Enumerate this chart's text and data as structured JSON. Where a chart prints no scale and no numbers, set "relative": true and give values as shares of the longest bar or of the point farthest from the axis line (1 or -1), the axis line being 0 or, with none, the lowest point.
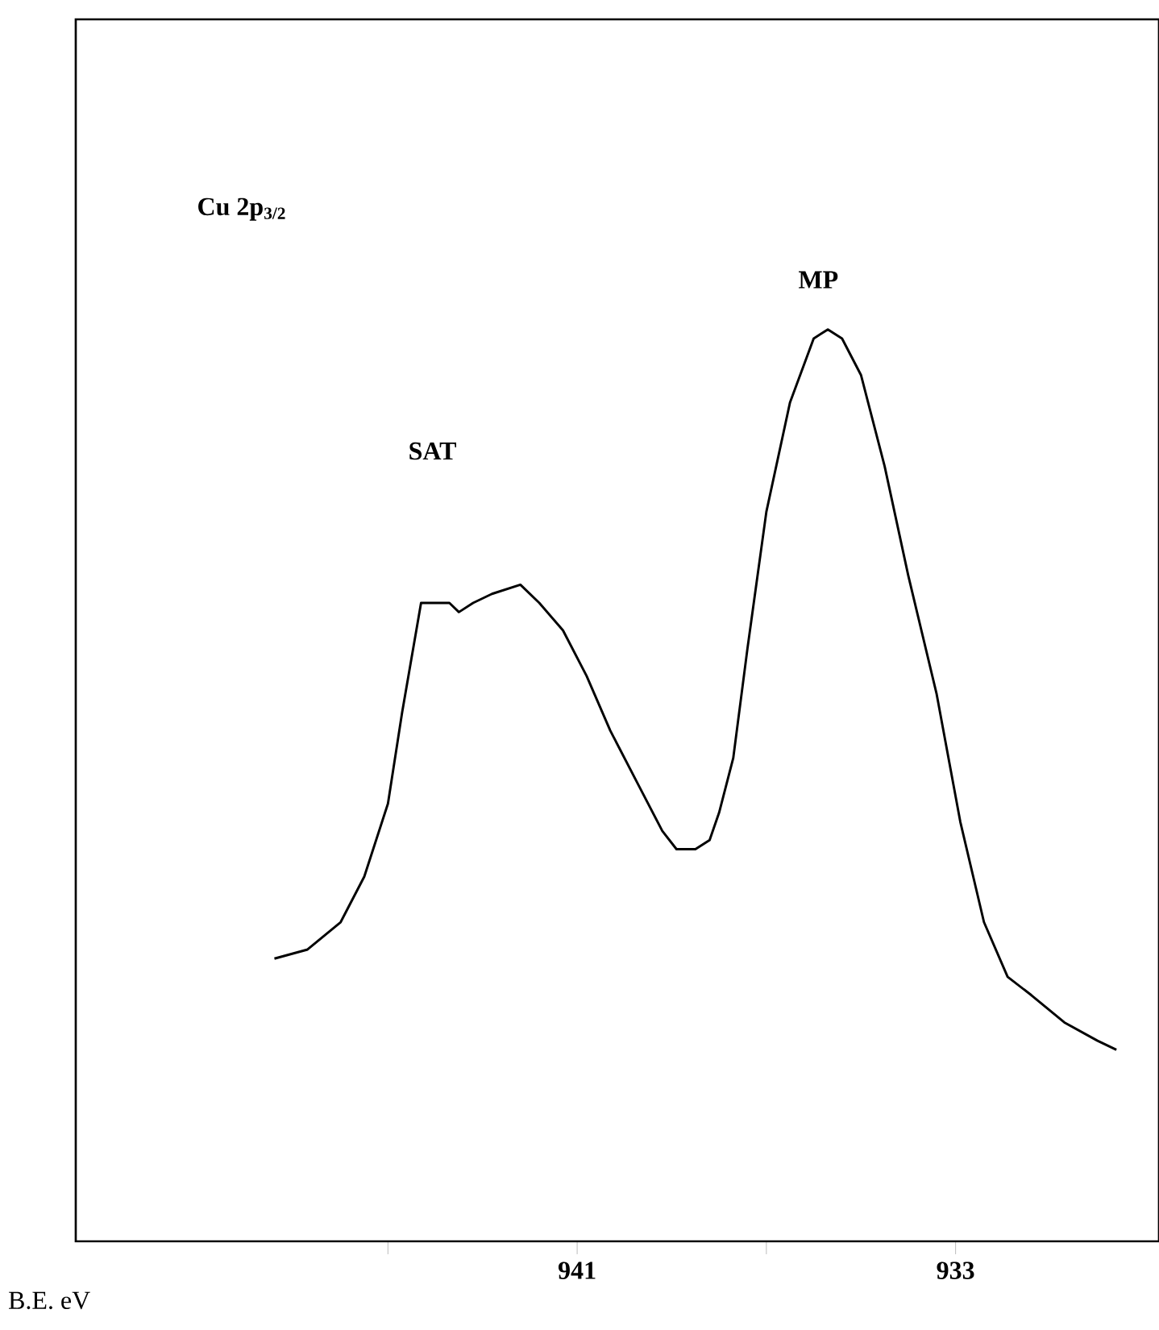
{
  "chart_data": {
    "type": "line",
    "relative": true,
    "xlabel": "B.E.  eV",
    "xlim": [
      951.6,
      928.7
    ],
    "xticks": [
      {
        "value": 945,
        "label": null
      },
      941,
      {
        "value": 937,
        "label": null
      },
      933
    ],
    "series": [
      {
        "color": "#000000",
        "x": [
          947.4,
          946.7,
          946.0,
          945.5,
          945.0,
          944.7,
          944.4,
          944.3,
          944.0,
          943.7,
          943.5,
          943.2,
          942.8,
          942.2,
          941.8,
          941.3,
          940.8,
          940.3,
          939.7,
          939.2,
          938.9,
          938.5,
          938.2,
          938.0,
          937.7,
          937.4,
          937.0,
          936.5,
          936.0,
          935.7,
          935.4,
          935.0,
          934.5,
          934.0,
          933.4,
          932.9,
          932.4,
          931.9,
          931.4,
          930.7,
          930.0,
          929.6
        ],
        "values": [
          0.31,
          0.32,
          0.35,
          0.4,
          0.48,
          0.58,
          0.67,
          0.7,
          0.7,
          0.7,
          0.69,
          0.7,
          0.71,
          0.72,
          0.7,
          0.67,
          0.62,
          0.56,
          0.5,
          0.45,
          0.43,
          0.43,
          0.44,
          0.47,
          0.53,
          0.65,
          0.8,
          0.92,
          0.99,
          1,
          0.99,
          0.95,
          0.85,
          0.73,
          0.6,
          0.46,
          0.35,
          0.29,
          0.27,
          0.24,
          0.22,
          0.21
        ]
      }
    ],
    "annotations": [
      "Cu 2p$_{3/2}$",
      "SAT",
      "MP"
    ],
    "grid": false,
    "marker": "none",
    "line_style": "solid"
  }
}
